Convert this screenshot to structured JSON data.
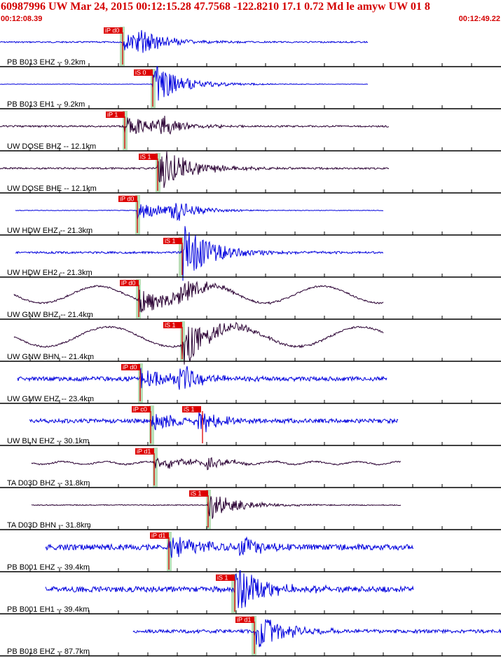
{
  "header": {
    "title": "60987996 UW Mar 24, 2015 00:12:15.28   47.7568 -122.8210 17.1 0.72 Md le amyw UW 01   8",
    "start_time": "00:12:08.39",
    "end_time": "00:12:49.22"
  },
  "colors": {
    "header_text": "#d40000",
    "trace_blue": "#0000dd",
    "trace_dark": "#2a0033",
    "pick_red": "#dd0000",
    "theory_green": "#b8e0b8"
  },
  "traces": [
    {
      "label": "PB B013 EHZ -- 9.2km",
      "color": "blue",
      "picks": [
        "iP d0"
      ]
    },
    {
      "label": "PB B013 EH1 -- 9.2km",
      "color": "blue",
      "picks": [
        "iS 0"
      ]
    },
    {
      "label": "UW DOSE BHZ -- 12.1km",
      "color": "dark",
      "picks": [
        "iP 1"
      ]
    },
    {
      "label": "UW DOSE BHE -- 12.1km",
      "color": "dark",
      "picks": [
        "iS 1"
      ]
    },
    {
      "label": "UW HDW EHZ -- 21.3km",
      "color": "blue",
      "picks": [
        "iP d0"
      ]
    },
    {
      "label": "UW HDW EH2 -- 21.3km",
      "color": "blue",
      "picks": [
        "iS 1"
      ]
    },
    {
      "label": "UW GNW BHZ -- 21.4km",
      "color": "dark",
      "picks": [
        "iP d0"
      ]
    },
    {
      "label": "UW GNW BHN -- 21.4km",
      "color": "dark",
      "picks": [
        "iS 1"
      ]
    },
    {
      "label": "UW GMW EHZ -- 23.4km",
      "color": "blue",
      "picks": [
        "iP d0"
      ]
    },
    {
      "label": "UW BLN EHZ -- 30.1km",
      "color": "blue",
      "picks": [
        "iP c0",
        "iS 1"
      ]
    },
    {
      "label": "TA D03D BHZ -- 31.8km",
      "color": "dark",
      "picks": [
        "iP d1"
      ]
    },
    {
      "label": "TA D03D BHN -- 31.8km",
      "color": "dark",
      "picks": [
        "iS 1"
      ]
    },
    {
      "label": "PB B001 EHZ -- 39.4km",
      "color": "blue",
      "picks": [
        "iP d1"
      ]
    },
    {
      "label": "PB B001 EH1 -- 39.4km",
      "color": "blue",
      "picks": [
        "iS 1"
      ]
    },
    {
      "label": "PB B018 EHZ -- 87.7km",
      "color": "blue",
      "picks": [
        "iP d1"
      ]
    }
  ]
}
